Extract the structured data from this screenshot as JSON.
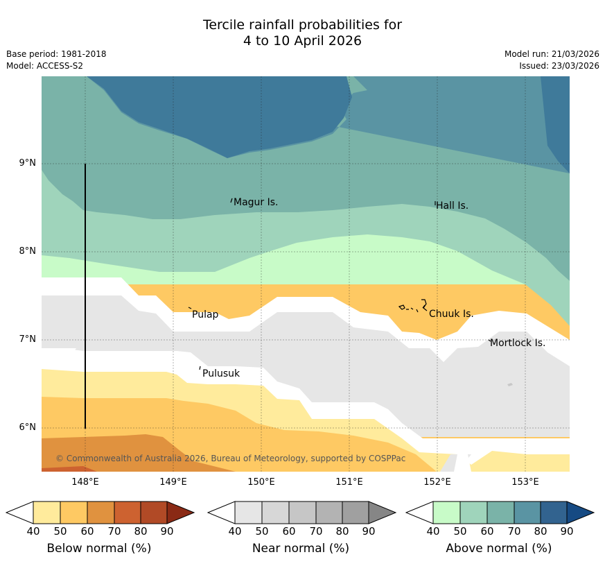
{
  "title_line1": "Tercile rainfall probabilities for",
  "title_line2": "4 to 10 April 2026",
  "base_period": "Base period: 1981-2018",
  "model": "Model: ACCESS-S2",
  "model_run": "Model run: 21/03/2026",
  "issued": "Issued: 23/03/2026",
  "lat_labels": [
    "9°N",
    "8°N",
    "7°N",
    "6°N"
  ],
  "lon_labels": [
    "148°E",
    "149°E",
    "150°E",
    "151°E",
    "152°E",
    "153°E"
  ],
  "places": [
    "Magur Is.",
    "Hall Is.",
    "Pulap",
    "Chuuk Is.",
    "Mortlock Is.",
    "Pulusuk"
  ],
  "copyright": "© Commonwealth of Australia 2026, Bureau of Meteorology, supported by COSPPac",
  "colorbars": [
    {
      "title": "Below normal (%)",
      "ticks": [
        "40",
        "50",
        "60",
        "70",
        "80",
        "90"
      ],
      "colors": [
        "#ffffff",
        "#ffeb9c",
        "#fec963",
        "#e0923f",
        "#cd6230",
        "#b14a26",
        "#8a2a15"
      ]
    },
    {
      "title": "Near normal (%)",
      "ticks": [
        "40",
        "50",
        "60",
        "70",
        "80",
        "90"
      ],
      "colors": [
        "#ffffff",
        "#e6e6e6",
        "#d7d7d7",
        "#c6c6c6",
        "#b3b3b3",
        "#a0a0a0",
        "#868686"
      ]
    },
    {
      "title": "Above normal (%)",
      "ticks": [
        "40",
        "50",
        "60",
        "70",
        "80",
        "90"
      ],
      "colors": [
        "#ffffff",
        "#c8fbc8",
        "#9fd4bb",
        "#7ab3a8",
        "#5a94a3",
        "#32638f",
        "#164a83"
      ]
    }
  ]
}
